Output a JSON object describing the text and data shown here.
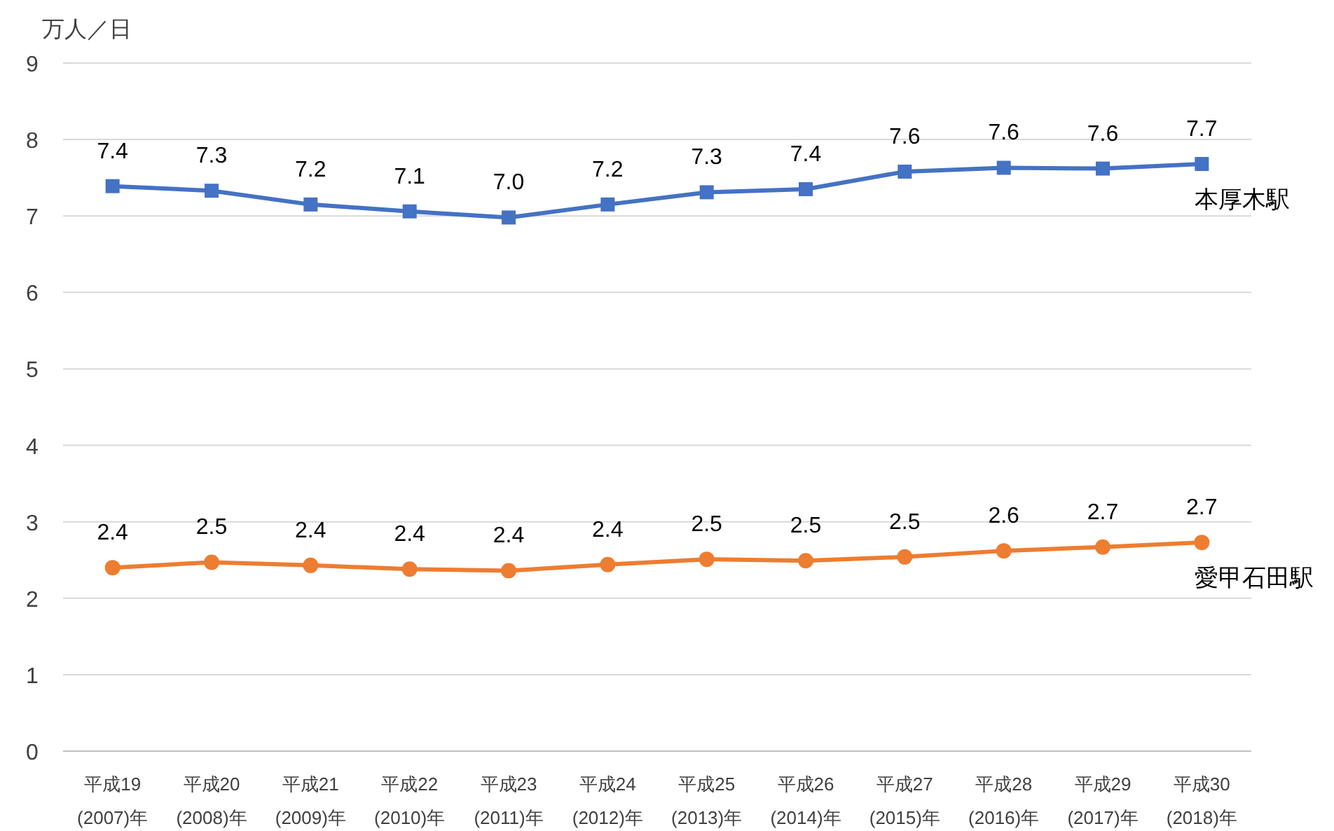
{
  "chart_data": {
    "type": "line",
    "ylabel": "万人／日",
    "categories": [
      "平成19\n(2007)年",
      "平成20\n(2008)年",
      "平成21\n(2009)年",
      "平成22\n(2010)年",
      "平成23\n(2011)年",
      "平成24\n(2012)年",
      "平成25\n(2013)年",
      "平成26\n(2014)年",
      "平成27\n(2015)年",
      "平成28\n(2016)年",
      "平成29\n(2017)年",
      "平成30\n(2018)年"
    ],
    "series": [
      {
        "name": "本厚木駅",
        "color": "#4472c4",
        "marker": "square",
        "values": [
          7.39,
          7.33,
          7.15,
          7.06,
          6.98,
          7.15,
          7.31,
          7.35,
          7.58,
          7.63,
          7.62,
          7.68
        ],
        "value_labels": [
          "7.4",
          "7.3",
          "7.2",
          "7.1",
          "7.0",
          "7.2",
          "7.3",
          "7.4",
          "7.6",
          "7.6",
          "7.6",
          "7.7"
        ]
      },
      {
        "name": "愛甲石田駅",
        "color": "#ed7d31",
        "marker": "circle",
        "values": [
          2.4,
          2.47,
          2.43,
          2.38,
          2.36,
          2.44,
          2.51,
          2.49,
          2.54,
          2.62,
          2.67,
          2.73
        ],
        "value_labels": [
          "2.4",
          "2.5",
          "2.4",
          "2.4",
          "2.4",
          "2.4",
          "2.5",
          "2.5",
          "2.5",
          "2.6",
          "2.7",
          "2.7"
        ]
      }
    ],
    "ylim": [
      0,
      9
    ],
    "yticks": [
      0,
      1,
      2,
      3,
      4,
      5,
      6,
      7,
      8,
      9
    ],
    "grid": "y",
    "legend": false,
    "line_style": "solid"
  }
}
